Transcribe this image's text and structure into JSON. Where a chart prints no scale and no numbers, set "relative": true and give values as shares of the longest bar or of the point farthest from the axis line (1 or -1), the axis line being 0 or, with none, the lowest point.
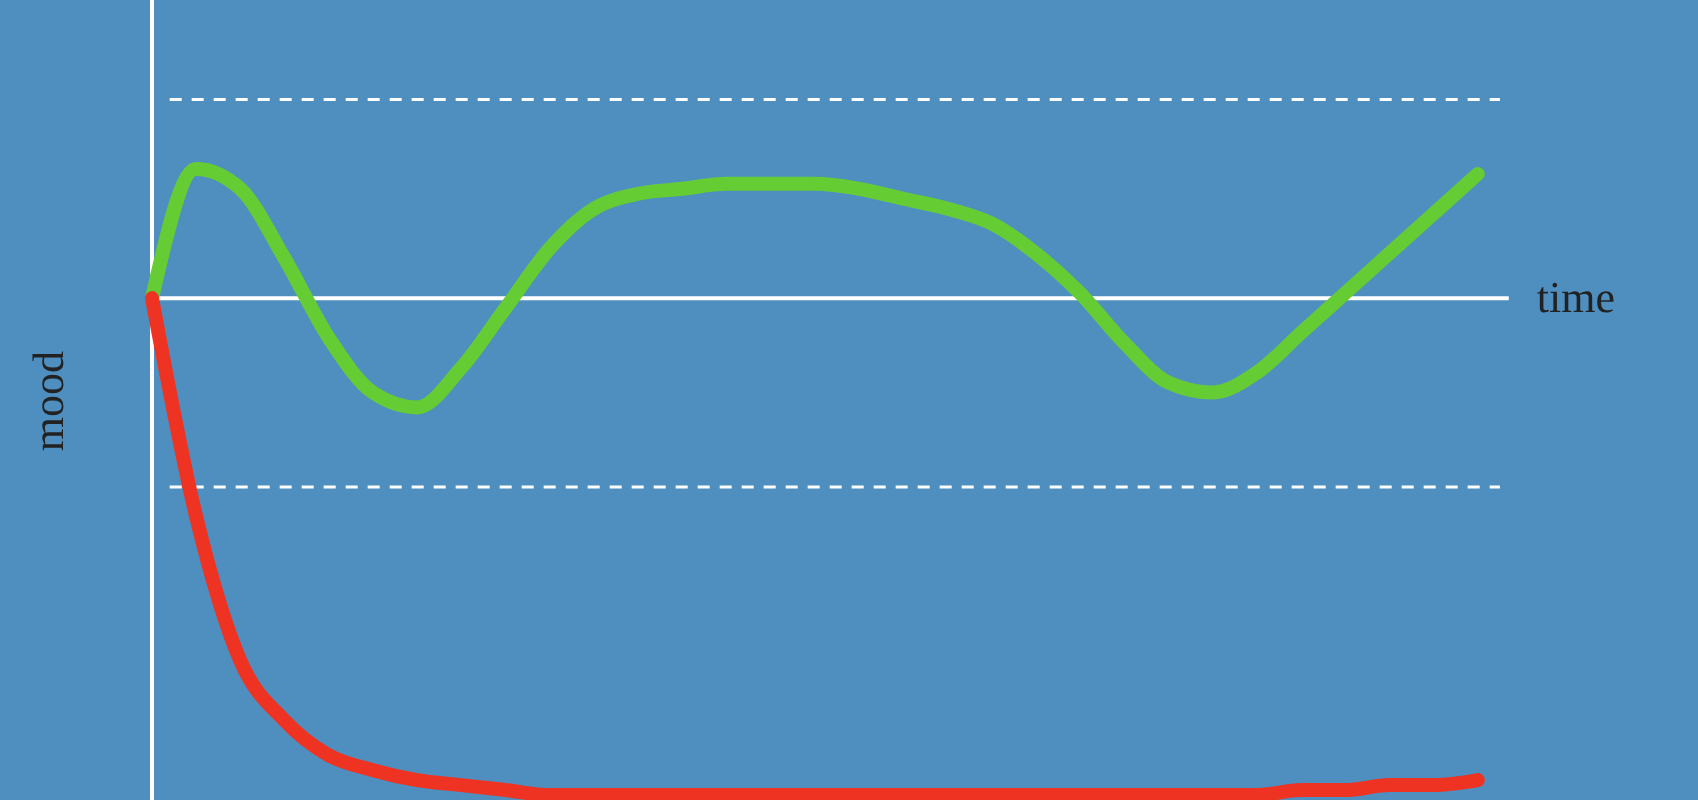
{
  "chart_data": {
    "type": "line",
    "relative": true,
    "xlabel": "time",
    "ylabel": "mood",
    "categories": [
      null,
      null,
      null,
      null,
      null,
      null,
      null,
      null,
      null,
      null,
      null,
      null,
      null,
      null,
      null,
      null,
      null,
      null,
      null,
      null,
      null,
      null,
      null,
      null,
      null,
      null,
      null,
      null,
      null,
      null,
      null
    ],
    "series": [
      {
        "color": "#66cc33",
        "values": [
          0,
          0.26,
          0.22,
          0.08,
          -0.08,
          -0.19,
          -0.22,
          -0.14,
          -0.02,
          0.1,
          0.18,
          0.21,
          0.22,
          0.23,
          0.23,
          0.23,
          0.22,
          0.2,
          0.18,
          0.15,
          0.09,
          0.01,
          -0.09,
          -0.17,
          -0.19,
          -0.15,
          -0.07,
          0.01,
          0.09,
          0.17,
          0.25
        ]
      },
      {
        "color": "#ee3322",
        "values": [
          0,
          -0.44,
          -0.73,
          -0.85,
          -0.92,
          -0.95,
          -0.97,
          -0.98,
          -0.99,
          -1,
          -1,
          -1,
          -1,
          -1,
          -1,
          -1,
          -1,
          -1,
          -1,
          -1,
          -1,
          -1,
          -1,
          -1,
          -1,
          -1,
          -0.99,
          -0.99,
          -0.98,
          -0.98,
          -0.97
        ]
      }
    ],
    "ref_lines": [
      {
        "axis": "y",
        "value": 0.4,
        "color": "#ffffff",
        "line_style": "dashed"
      },
      {
        "axis": "y",
        "value": -0.38,
        "color": "#ffffff",
        "line_style": "dashed"
      }
    ],
    "grid": false,
    "marker": "none",
    "line_style": "solid"
  }
}
